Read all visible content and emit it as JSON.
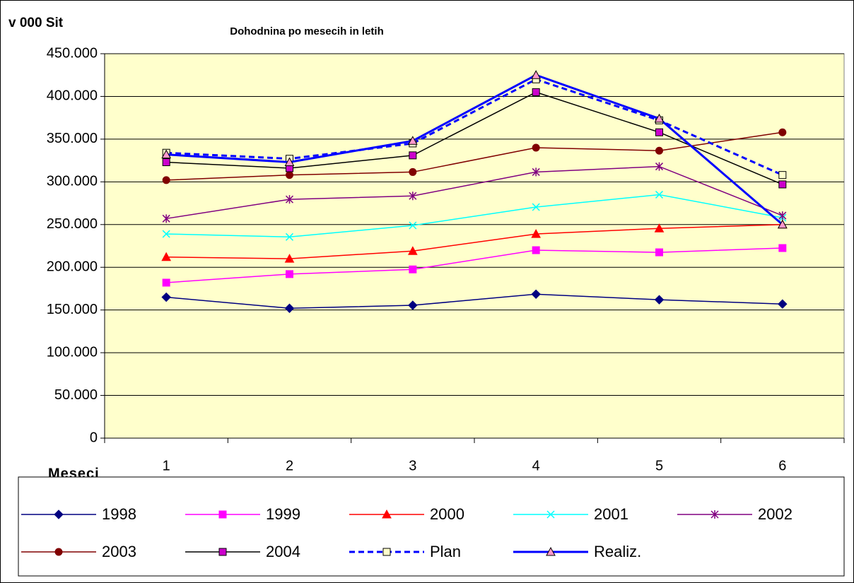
{
  "chart_data": {
    "type": "line",
    "title": "Dohodnina po mesecih in letih",
    "y_label": "v 000 Sit",
    "x_label": "Meseci",
    "categories": [
      "1",
      "2",
      "3",
      "4",
      "5",
      "6"
    ],
    "ylim": [
      0,
      450000
    ],
    "yticks": [
      0,
      {
        "value": 50000,
        "label": "50.000"
      },
      {
        "value": 100000,
        "label": "100.000"
      },
      {
        "value": 150000,
        "label": "150.000"
      },
      {
        "value": 200000,
        "label": "200.000"
      },
      {
        "value": 250000,
        "label": "250.000"
      },
      {
        "value": 300000,
        "label": "300.000"
      },
      {
        "value": 350000,
        "label": "350.000"
      },
      {
        "value": 400000,
        "label": "400.000"
      },
      {
        "value": 450000,
        "label": "450.000"
      }
    ],
    "grid": true,
    "legend": "bottom",
    "series": [
      {
        "name": "1998",
        "color": "#000080",
        "marker": "diamond",
        "marker_fill": "#000080",
        "values": [
          165000,
          152000,
          155500,
          168500,
          162000,
          157000
        ]
      },
      {
        "name": "1999",
        "color": "#ff00ff",
        "marker": "square",
        "marker_fill": "#ff00ff",
        "values": [
          182000,
          192000,
          197500,
          220000,
          217500,
          222500
        ]
      },
      {
        "name": "2000",
        "color": "#ff0000",
        "marker": "triangle",
        "marker_fill": "#ff0000",
        "values": [
          212000,
          210000,
          219000,
          239000,
          245500,
          250000
        ]
      },
      {
        "name": "2001",
        "color": "#00ffff",
        "marker": "x",
        "marker_fill": "#00ffff",
        "values": [
          239000,
          235500,
          249000,
          270500,
          285000,
          258000
        ]
      },
      {
        "name": "2002",
        "color": "#800080",
        "marker": "star",
        "marker_fill": "#800080",
        "values": [
          257000,
          279500,
          283500,
          311500,
          318000,
          260500
        ]
      },
      {
        "name": "2003",
        "color": "#800000",
        "marker": "circle",
        "marker_fill": "#800000",
        "values": [
          302000,
          308000,
          311500,
          340000,
          336500,
          358000
        ]
      },
      {
        "name": "2004",
        "color": "#000000",
        "marker": "square",
        "marker_fill": "#cc00cc",
        "values": [
          323000,
          316000,
          331000,
          405000,
          358000,
          297000
        ]
      },
      {
        "name": "Plan",
        "color": "#0000ff",
        "marker": "square",
        "marker_fill": "#ffffcc",
        "dash": true,
        "width": 3,
        "values": [
          334000,
          327000,
          345000,
          420000,
          372000,
          308000
        ]
      },
      {
        "name": "Realiz.",
        "color": "#0000ff",
        "marker": "triangle",
        "marker_fill": "#ff99cc",
        "width": 3,
        "values": [
          332000,
          323000,
          348000,
          425000,
          374000,
          250000
        ]
      }
    ]
  }
}
